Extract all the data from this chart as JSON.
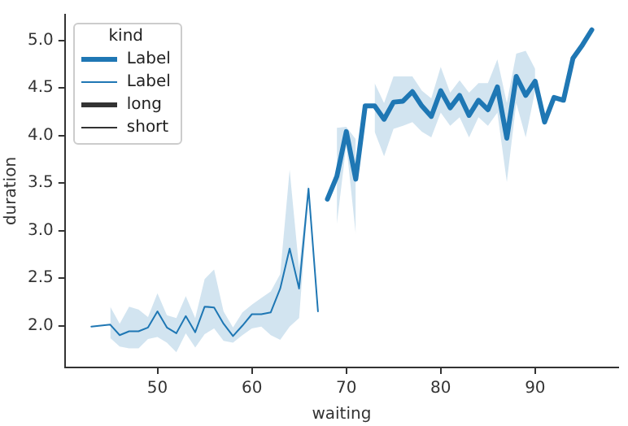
{
  "chart_data": {
    "type": "line",
    "xlabel": "waiting",
    "ylabel": "duration",
    "legend_title": "kind",
    "legend": "top left",
    "grid": false,
    "marker": "none",
    "line_style": "solid",
    "xlim": [
      40.2,
      98.8
    ],
    "ylim": [
      1.56,
      5.27
    ],
    "xticks": [
      50,
      60,
      70,
      80,
      90
    ],
    "yticks": [
      {
        "value": 2,
        "label": "2.0"
      },
      {
        "value": 2.5,
        "label": "2.5"
      },
      {
        "value": 3,
        "label": "3.0"
      },
      {
        "value": 3.5,
        "label": "3.5"
      },
      {
        "value": 4,
        "label": "4.0"
      },
      {
        "value": 4.5,
        "label": "4.5"
      },
      {
        "value": 5,
        "label": "5.0"
      }
    ],
    "series": [
      {
        "name": "Label",
        "color": "#1f77b4",
        "x": [
          68,
          69,
          70,
          71,
          72,
          73,
          74,
          75,
          76,
          77,
          78,
          79,
          80,
          81,
          82,
          83,
          84,
          85,
          86,
          87,
          88,
          89,
          90,
          91,
          92,
          93,
          94,
          95,
          96
        ],
        "values": [
          3.33,
          3.57,
          4.04,
          3.54,
          4.31,
          4.31,
          4.17,
          4.35,
          4.36,
          4.46,
          4.31,
          4.2,
          4.47,
          4.29,
          4.42,
          4.21,
          4.37,
          4.27,
          4.51,
          3.97,
          4.62,
          4.42,
          4.57,
          4.14,
          4.4,
          4.37,
          4.81,
          4.95,
          5.11
        ],
        "lower": [
          null,
          3.07,
          3.9,
          2.96,
          null,
          4.04,
          3.78,
          4.07,
          4.1,
          4.14,
          4.04,
          3.98,
          4.24,
          4.1,
          4.19,
          3.98,
          4.19,
          4.1,
          4.24,
          3.51,
          4.34,
          3.98,
          4.47,
          null,
          null,
          null,
          null,
          null,
          null
        ],
        "upper": [
          null,
          4.08,
          4.09,
          3.96,
          null,
          4.55,
          4.34,
          4.62,
          4.62,
          4.62,
          4.47,
          4.39,
          4.72,
          4.45,
          4.58,
          4.45,
          4.55,
          4.55,
          4.8,
          4.34,
          4.86,
          4.89,
          4.7,
          null,
          null,
          null,
          null,
          null,
          null
        ]
      },
      {
        "name": "Label",
        "color": "#1f77b4",
        "x": [
          43,
          45,
          46,
          47,
          48,
          49,
          50,
          51,
          52,
          53,
          54,
          55,
          56,
          57,
          58,
          59,
          60,
          61,
          62,
          63,
          64,
          65,
          66,
          67
        ],
        "values": [
          1.99,
          2.01,
          1.9,
          1.94,
          1.94,
          1.98,
          2.15,
          1.98,
          1.92,
          2.1,
          1.93,
          2.2,
          2.19,
          2.02,
          1.89,
          2.0,
          2.12,
          2.12,
          2.14,
          2.39,
          2.81,
          2.39,
          3.44,
          2.15
        ],
        "lower": [
          null,
          1.87,
          1.78,
          1.76,
          1.76,
          1.86,
          1.88,
          1.82,
          1.72,
          1.92,
          1.77,
          1.91,
          1.97,
          1.84,
          1.82,
          1.9,
          1.97,
          1.99,
          1.9,
          1.85,
          1.99,
          2.08,
          3.38,
          null
        ],
        "upper": [
          null,
          2.2,
          2.02,
          2.2,
          2.17,
          2.09,
          2.34,
          2.11,
          2.08,
          2.31,
          2.08,
          2.49,
          2.59,
          2.15,
          1.98,
          2.14,
          2.22,
          2.29,
          2.36,
          2.54,
          3.64,
          2.6,
          3.51,
          null
        ]
      },
      {
        "name": "long",
        "color": "#333333"
      },
      {
        "name": "short",
        "color": "#333333"
      }
    ]
  }
}
